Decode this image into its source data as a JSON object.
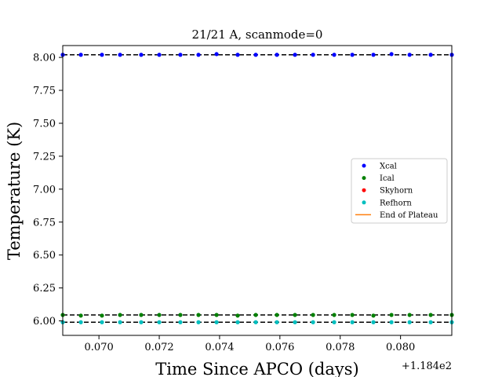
{
  "chart_data": {
    "type": "scatter",
    "title": "21/21 A, scanmode=0",
    "xlabel": "Time Since APCO (days)",
    "ylabel": "Temperature (K)",
    "x_offset_label": "+1.184e2",
    "xlim": [
      118.4688,
      118.4817
    ],
    "ylim": [
      5.89,
      8.09
    ],
    "xticks": [
      118.47,
      118.472,
      118.474,
      118.476,
      118.478,
      118.48
    ],
    "xtick_labels": [
      "0.070",
      "0.072",
      "0.074",
      "0.076",
      "0.078",
      "0.080"
    ],
    "yticks": [
      6.0,
      6.25,
      6.5,
      6.75,
      7.0,
      7.25,
      7.5,
      7.75,
      8.0
    ],
    "ytick_labels": [
      "6.00",
      "6.25",
      "6.50",
      "6.75",
      "7.00",
      "7.25",
      "7.50",
      "7.75",
      "8.00"
    ],
    "x": [
      118.4688,
      118.4694,
      118.4701,
      118.4707,
      118.4714,
      118.472,
      118.4727,
      118.4733,
      118.4739,
      118.4746,
      118.4752,
      118.4759,
      118.4765,
      118.4771,
      118.4778,
      118.4784,
      118.4791,
      118.4797,
      118.4803,
      118.481,
      118.4817
    ],
    "series": [
      {
        "name": "Xcal",
        "color": "#0000ff",
        "marker": "point",
        "values": [
          8.02,
          8.02,
          8.02,
          8.02,
          8.02,
          8.02,
          8.02,
          8.02,
          8.025,
          8.02,
          8.02,
          8.02,
          8.02,
          8.02,
          8.02,
          8.02,
          8.02,
          8.025,
          8.02,
          8.02,
          8.02
        ]
      },
      {
        "name": "Ical",
        "color": "#008000",
        "marker": "point",
        "values": [
          6.045,
          6.04,
          6.04,
          6.045,
          6.045,
          6.045,
          6.045,
          6.045,
          6.045,
          6.04,
          6.045,
          6.045,
          6.045,
          6.045,
          6.045,
          6.045,
          6.04,
          6.045,
          6.045,
          6.045,
          6.045
        ]
      },
      {
        "name": "Skyhorn",
        "color": "#ff0000",
        "marker": "point",
        "values": []
      },
      {
        "name": "Refhorn",
        "color": "#00bfbf",
        "marker": "point",
        "values": [
          5.99,
          5.99,
          5.99,
          5.99,
          5.99,
          5.99,
          5.99,
          5.99,
          5.99,
          5.99,
          5.99,
          5.99,
          5.99,
          5.99,
          5.99,
          5.99,
          5.99,
          5.99,
          5.99,
          5.99,
          5.99
        ]
      },
      {
        "name": "End of Plateau",
        "color": "#ff7f0e",
        "marker": "line",
        "values": []
      }
    ],
    "reference_lines": [
      {
        "y": 8.02,
        "style": "dashed",
        "color": "#000000"
      },
      {
        "y": 6.045,
        "style": "dashed",
        "color": "#000000"
      },
      {
        "y": 5.99,
        "style": "dashed",
        "color": "#000000"
      }
    ],
    "legend_position": "center-right",
    "grid": false
  }
}
